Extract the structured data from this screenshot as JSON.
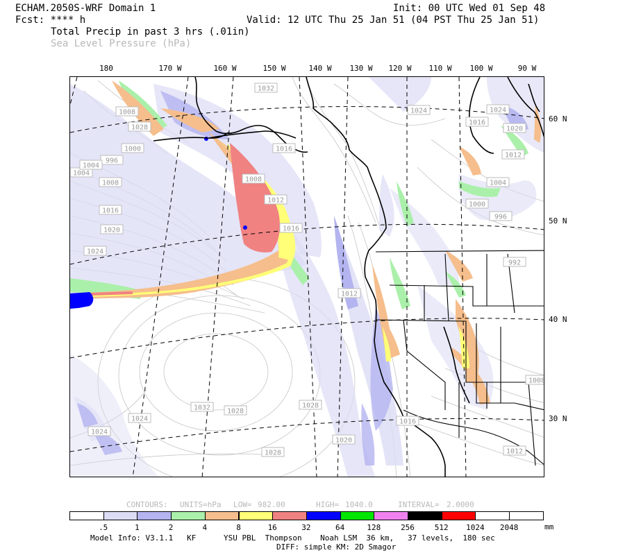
{
  "header": {
    "model_line": "ECHAM.2050S-WRF Domain 1",
    "fcst_line": "Fcst: **** h",
    "init_line": "Init: 00 UTC Wed 01 Sep 48",
    "valid_line": "Valid: 12 UTC Thu 25 Jan 51 (04 PST Thu 25 Jan 51)",
    "field1": "Total Precip in past 3 hrs (.01in)",
    "field2": "Sea Level Pressure (hPa)"
  },
  "map": {
    "lon_labels": [
      "180",
      "170 W",
      "160 W",
      "150 W",
      "140 W",
      "130 W",
      "120 W",
      "110 W",
      "100 W",
      "90 W"
    ],
    "lat_labels": [
      "60 N",
      "50 N",
      "40 N",
      "30 N"
    ],
    "isobar_labels": [
      "1032",
      "1024",
      "1028",
      "1008",
      "1004",
      "1000",
      "996",
      "1004",
      "1008",
      "1016",
      "1020",
      "1024",
      "1008",
      "1012",
      "1016",
      "1016",
      "1024",
      "1016",
      "1020",
      "1012",
      "1004",
      "1000",
      "996",
      "992",
      "1012",
      "1008",
      "1028",
      "1032",
      "1028",
      "1028",
      "1024",
      "1024",
      "1020",
      "1016",
      "1012"
    ]
  },
  "contours": {
    "units_label": "CONTOURS:",
    "units": "UNITS=hPa",
    "low_label": "LOW=",
    "low": "982.00",
    "high_label": "HIGH=",
    "high": "1040.0",
    "interval_label": "INTERVAL=",
    "interval": "2.0000"
  },
  "colorbar": {
    "labels": [
      ".5",
      "1",
      "2",
      "4",
      "8",
      "16",
      "32",
      "64",
      "128",
      "256",
      "512",
      "1024",
      "2048"
    ],
    "unit": "mm",
    "colors": [
      "#ffffff",
      "#dcdcf5",
      "#b4b4f0",
      "#aaf0aa",
      "#f5be8c",
      "#ffff78",
      "#f08282",
      "#0000ff",
      "#00e600",
      "#f082f0",
      "#000000",
      "#ff0000",
      "#ffffff",
      "#ffffff"
    ]
  },
  "footer": {
    "line1": "Model Info: V3.1.1   KF      YSU PBL  Thompson    Noah LSM  36 km,   37 levels,  180 sec",
    "line2": "DIFF: simple KM: 2D Smagor"
  }
}
